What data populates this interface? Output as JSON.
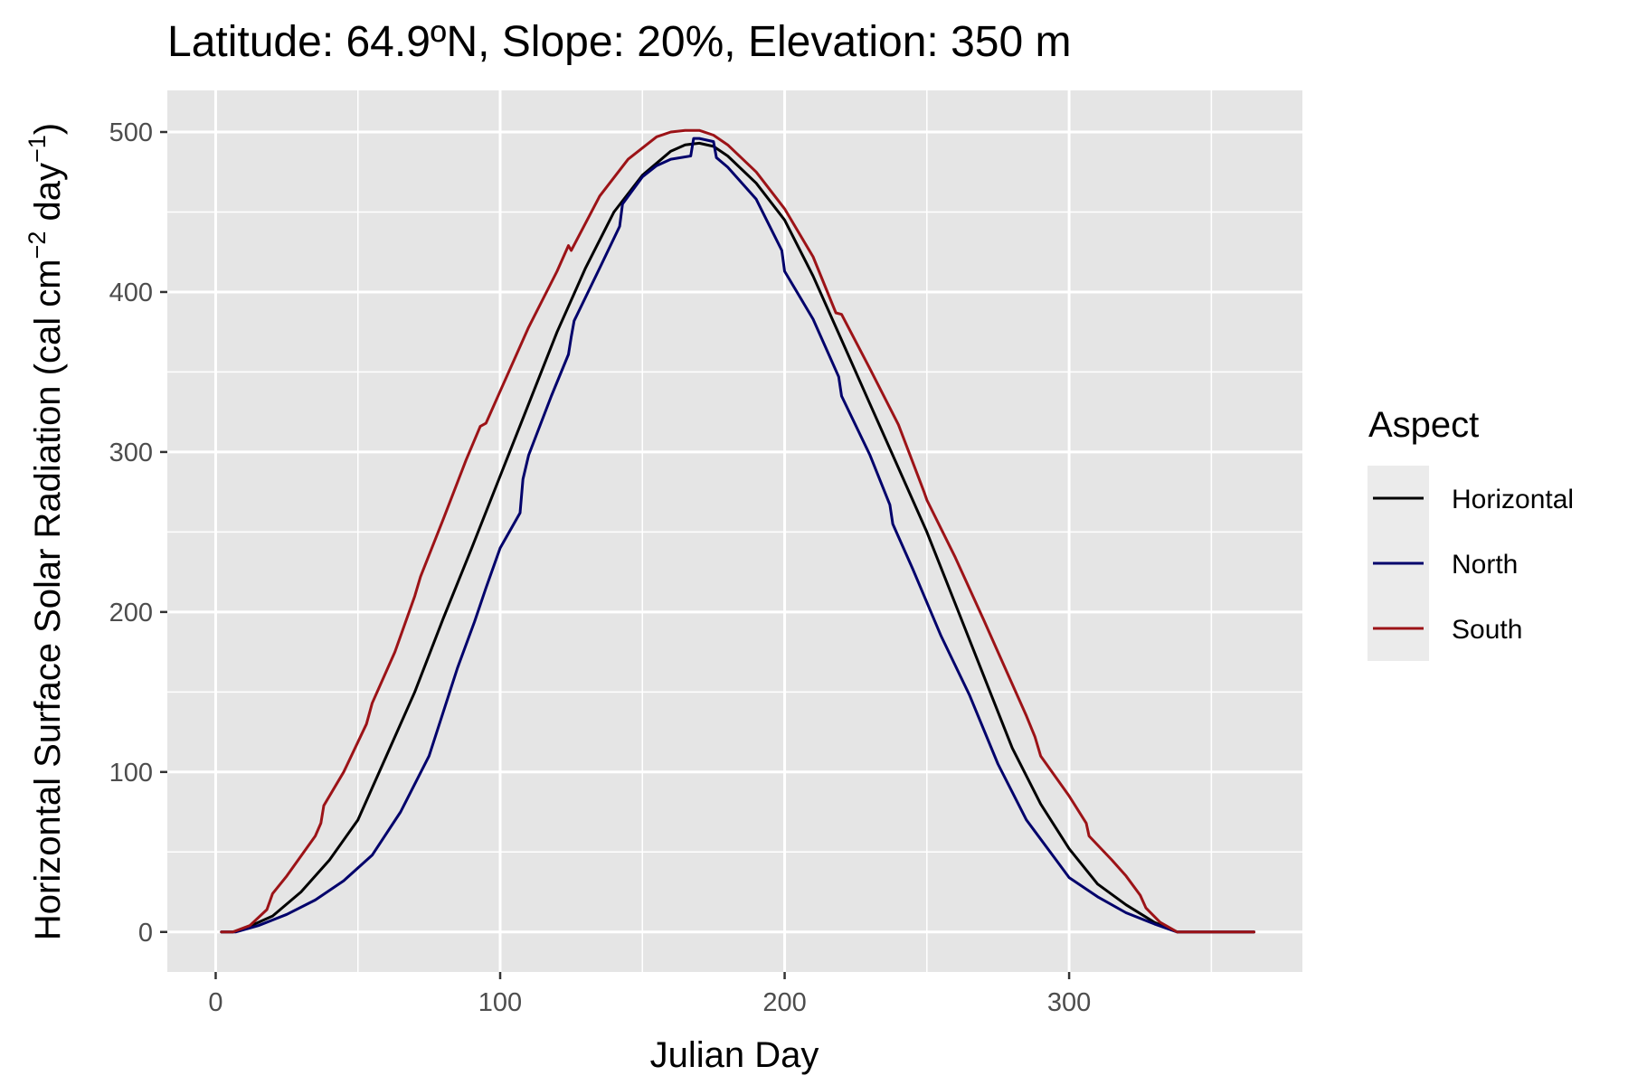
{
  "chart_data": {
    "type": "line",
    "title": "Latitude: 64.9ºN, Slope: 20%, Elevation: 350 m",
    "xlabel": "Julian Day",
    "ylabel": {
      "main": "Horizontal Surface Solar Radiation ",
      "open": "(",
      "unit1": "cal cm",
      "exp1": "−2",
      "unit2": " day",
      "exp2": "−1",
      "close": ")"
    },
    "xlim": [
      -17,
      382
    ],
    "ylim": [
      -25,
      526
    ],
    "x_ticks": [
      0,
      100,
      200,
      300
    ],
    "y_ticks": [
      0,
      100,
      200,
      300,
      400,
      500
    ],
    "grid": true,
    "background": "#e5e5e5",
    "legend": {
      "title": "Aspect",
      "position": "right"
    },
    "series": [
      {
        "name": "Horizontal",
        "color": "#000000",
        "points": [
          [
            2,
            0
          ],
          [
            6,
            0
          ],
          [
            10,
            2
          ],
          [
            20,
            10
          ],
          [
            30,
            25
          ],
          [
            40,
            45
          ],
          [
            50,
            70
          ],
          [
            60,
            110
          ],
          [
            70,
            150
          ],
          [
            80,
            196
          ],
          [
            90,
            240
          ],
          [
            100,
            285
          ],
          [
            110,
            330
          ],
          [
            120,
            375
          ],
          [
            130,
            415
          ],
          [
            140,
            450
          ],
          [
            150,
            473
          ],
          [
            160,
            488
          ],
          [
            165,
            492
          ],
          [
            170,
            493
          ],
          [
            175,
            491
          ],
          [
            180,
            485
          ],
          [
            190,
            468
          ],
          [
            200,
            445
          ],
          [
            210,
            410
          ],
          [
            220,
            370
          ],
          [
            230,
            330
          ],
          [
            240,
            290
          ],
          [
            250,
            250
          ],
          [
            260,
            205
          ],
          [
            270,
            160
          ],
          [
            280,
            115
          ],
          [
            290,
            80
          ],
          [
            300,
            52
          ],
          [
            310,
            30
          ],
          [
            320,
            17
          ],
          [
            330,
            6
          ],
          [
            338,
            0
          ],
          [
            345,
            0
          ],
          [
            365,
            0
          ]
        ]
      },
      {
        "name": "North",
        "color": "#00006b",
        "points": [
          [
            2,
            0
          ],
          [
            7,
            0
          ],
          [
            15,
            4
          ],
          [
            25,
            11
          ],
          [
            35,
            20
          ],
          [
            45,
            32
          ],
          [
            55,
            48
          ],
          [
            65,
            75
          ],
          [
            75,
            110
          ],
          [
            85,
            165
          ],
          [
            91,
            194
          ],
          [
            95,
            215
          ],
          [
            100,
            240
          ],
          [
            107,
            262
          ],
          [
            108,
            283
          ],
          [
            110,
            298
          ],
          [
            118,
            335
          ],
          [
            124,
            361
          ],
          [
            125,
            372
          ],
          [
            126,
            382
          ],
          [
            135,
            415
          ],
          [
            142,
            441
          ],
          [
            143,
            455
          ],
          [
            150,
            472
          ],
          [
            155,
            479
          ],
          [
            160,
            483
          ],
          [
            167,
            485
          ],
          [
            168,
            496
          ],
          [
            170,
            496
          ],
          [
            175,
            494
          ],
          [
            176,
            484
          ],
          [
            180,
            478
          ],
          [
            190,
            458
          ],
          [
            199,
            426
          ],
          [
            200,
            413
          ],
          [
            210,
            383
          ],
          [
            219,
            347
          ],
          [
            220,
            335
          ],
          [
            230,
            298
          ],
          [
            237,
            267
          ],
          [
            238,
            255
          ],
          [
            245,
            227
          ],
          [
            255,
            185
          ],
          [
            265,
            148
          ],
          [
            275,
            105
          ],
          [
            285,
            70
          ],
          [
            295,
            46
          ],
          [
            300,
            34
          ],
          [
            310,
            22
          ],
          [
            320,
            12
          ],
          [
            330,
            5
          ],
          [
            338,
            0
          ],
          [
            345,
            0
          ],
          [
            365,
            0
          ]
        ]
      },
      {
        "name": "South",
        "color": "#9c1317",
        "points": [
          [
            2,
            0
          ],
          [
            6,
            0
          ],
          [
            12,
            4
          ],
          [
            18,
            14
          ],
          [
            20,
            24
          ],
          [
            25,
            35
          ],
          [
            35,
            60
          ],
          [
            37,
            68
          ],
          [
            38,
            79
          ],
          [
            45,
            100
          ],
          [
            53,
            130
          ],
          [
            55,
            143
          ],
          [
            63,
            175
          ],
          [
            70,
            210
          ],
          [
            72,
            222
          ],
          [
            80,
            258
          ],
          [
            88,
            295
          ],
          [
            93,
            316
          ],
          [
            95,
            318
          ],
          [
            100,
            338
          ],
          [
            110,
            378
          ],
          [
            120,
            413
          ],
          [
            124,
            429
          ],
          [
            125,
            426
          ],
          [
            135,
            460
          ],
          [
            145,
            483
          ],
          [
            155,
            497
          ],
          [
            160,
            500
          ],
          [
            165,
            501
          ],
          [
            170,
            501
          ],
          [
            175,
            498
          ],
          [
            180,
            492
          ],
          [
            190,
            475
          ],
          [
            200,
            452
          ],
          [
            210,
            422
          ],
          [
            218,
            387
          ],
          [
            220,
            386
          ],
          [
            230,
            352
          ],
          [
            240,
            317
          ],
          [
            249,
            275
          ],
          [
            250,
            270
          ],
          [
            260,
            234
          ],
          [
            270,
            195
          ],
          [
            275,
            175
          ],
          [
            285,
            135
          ],
          [
            288,
            122
          ],
          [
            290,
            110
          ],
          [
            300,
            85
          ],
          [
            306,
            68
          ],
          [
            307,
            60
          ],
          [
            315,
            45
          ],
          [
            320,
            35
          ],
          [
            325,
            23
          ],
          [
            327,
            15
          ],
          [
            332,
            6
          ],
          [
            338,
            0
          ],
          [
            345,
            0
          ],
          [
            365,
            0
          ]
        ]
      }
    ]
  }
}
